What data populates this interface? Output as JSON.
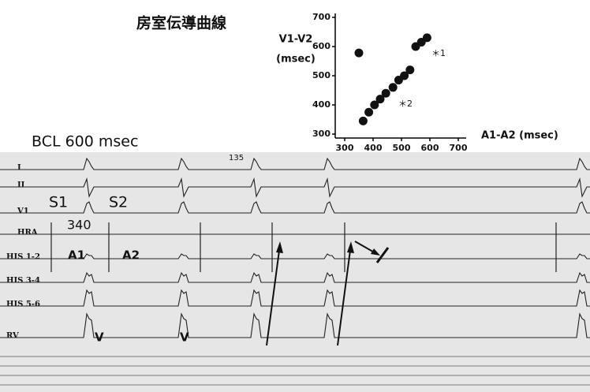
{
  "chart_data": {
    "type": "scatter",
    "title": "房室伝導曲線",
    "y_label": [
      "V1-V2",
      "(msec)"
    ],
    "x_label": "A1-A2  (msec)",
    "x": [
      350,
      365,
      385,
      405,
      425,
      445,
      470,
      490,
      510,
      530,
      550,
      570,
      590
    ],
    "values": [
      578,
      345,
      375,
      400,
      420,
      440,
      460,
      485,
      500,
      520,
      600,
      615,
      630
    ],
    "color": "#111111",
    "xlim": [
      300,
      700
    ],
    "xticks": [
      300,
      400,
      500,
      600,
      700
    ],
    "ylim": [
      300,
      700
    ],
    "yticks": [
      300,
      400,
      500,
      600,
      700
    ],
    "annotations": [
      "＊1",
      "＊2"
    ]
  },
  "tracing": {
    "leads": [
      "I",
      "II",
      "V1",
      "HRA",
      "HIS 1-2",
      "HIS 3-4",
      "HIS 5-6",
      "RV"
    ],
    "annotations": [
      "BCL 600 msec",
      "S1",
      "S2",
      "340",
      "A1",
      "A2",
      "V",
      "V",
      "135"
    ]
  }
}
